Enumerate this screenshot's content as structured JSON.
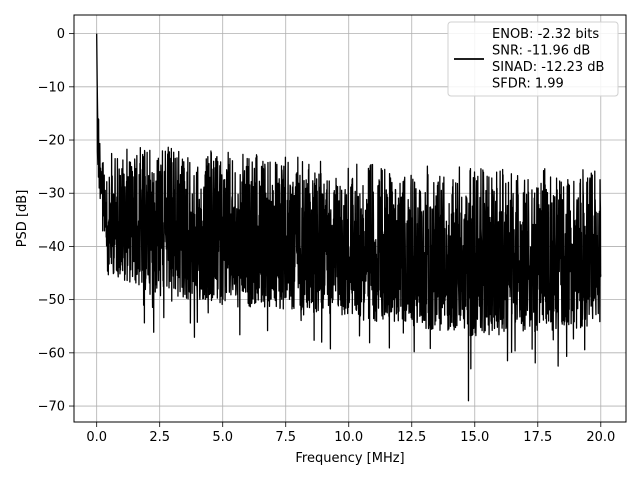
{
  "chart_data": {
    "type": "line",
    "title": "",
    "xlabel": "Frequency [MHz]",
    "ylabel": "PSD [dB]",
    "xlim": [
      -0.9,
      21.0
    ],
    "ylim": [
      -73,
      3.5
    ],
    "xticks": [
      0.0,
      2.5,
      5.0,
      7.5,
      10.0,
      12.5,
      15.0,
      17.5,
      20.0
    ],
    "xtick_labels": [
      "0.0",
      "2.5",
      "5.0",
      "7.5",
      "10.0",
      "12.5",
      "15.0",
      "17.5",
      "20.0"
    ],
    "yticks": [
      0,
      -10,
      -20,
      -30,
      -40,
      -50,
      -60,
      -70
    ],
    "ytick_labels": [
      "0",
      "−10",
      "−20",
      "−30",
      "−40",
      "−50",
      "−60",
      "−70"
    ],
    "grid": true,
    "legend_position": "top-right",
    "series": [
      {
        "name": "ENOB: -2.32 bits\nSNR: -11.96 dB\nSINAD: -12.23 dB\nSFDR: 1.99",
        "color": "#000000",
        "x_range_mhz": [
          0.0,
          20.0
        ],
        "peak_at_dc_db": 0.0,
        "upper_envelope_db": [
          [
            0.0,
            0
          ],
          [
            0.1,
            -17
          ],
          [
            0.5,
            -22
          ],
          [
            2.5,
            -20
          ],
          [
            5.0,
            -22
          ],
          [
            10.0,
            -24
          ],
          [
            15.0,
            -25
          ],
          [
            20.0,
            -25
          ]
        ],
        "lower_envelope_db": [
          [
            0.0,
            -26
          ],
          [
            0.5,
            -45
          ],
          [
            2.5,
            -50
          ],
          [
            7.5,
            -52
          ],
          [
            12.5,
            -55
          ],
          [
            15.0,
            -57
          ],
          [
            20.0,
            -55
          ]
        ],
        "notable_minimum_db": [
          14.75,
          -69
        ]
      }
    ]
  }
}
